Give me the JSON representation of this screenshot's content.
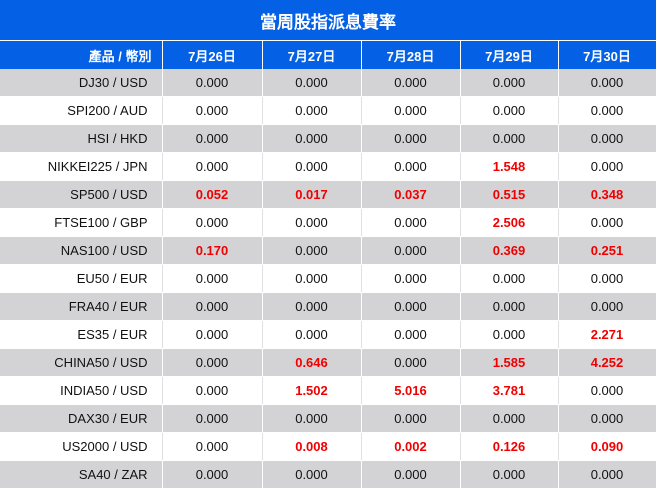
{
  "title": "當周股指派息費率",
  "header": {
    "pair_label": "產品 / 幣別",
    "dates": [
      "7月26日",
      "7月27日",
      "7月28日",
      "7月29日",
      "7月30日"
    ]
  },
  "highlight_color": "#f00000",
  "rows": [
    {
      "pair": "DJ30 / USD",
      "values": [
        "0.000",
        "0.000",
        "0.000",
        "0.000",
        "0.000"
      ],
      "highlight": [
        false,
        false,
        false,
        false,
        false
      ]
    },
    {
      "pair": "SPI200 / AUD",
      "values": [
        "0.000",
        "0.000",
        "0.000",
        "0.000",
        "0.000"
      ],
      "highlight": [
        false,
        false,
        false,
        false,
        false
      ]
    },
    {
      "pair": "HSI / HKD",
      "values": [
        "0.000",
        "0.000",
        "0.000",
        "0.000",
        "0.000"
      ],
      "highlight": [
        false,
        false,
        false,
        false,
        false
      ]
    },
    {
      "pair": "NIKKEI225 / JPN",
      "values": [
        "0.000",
        "0.000",
        "0.000",
        "1.548",
        "0.000"
      ],
      "highlight": [
        false,
        false,
        false,
        true,
        false
      ]
    },
    {
      "pair": "SP500 / USD",
      "values": [
        "0.052",
        "0.017",
        "0.037",
        "0.515",
        "0.348"
      ],
      "highlight": [
        true,
        true,
        true,
        true,
        true
      ]
    },
    {
      "pair": "FTSE100 / GBP",
      "values": [
        "0.000",
        "0.000",
        "0.000",
        "2.506",
        "0.000"
      ],
      "highlight": [
        false,
        false,
        false,
        true,
        false
      ]
    },
    {
      "pair": "NAS100 / USD",
      "values": [
        "0.170",
        "0.000",
        "0.000",
        "0.369",
        "0.251"
      ],
      "highlight": [
        true,
        false,
        false,
        true,
        true
      ]
    },
    {
      "pair": "EU50 / EUR",
      "values": [
        "0.000",
        "0.000",
        "0.000",
        "0.000",
        "0.000"
      ],
      "highlight": [
        false,
        false,
        false,
        false,
        false
      ]
    },
    {
      "pair": "FRA40 / EUR",
      "values": [
        "0.000",
        "0.000",
        "0.000",
        "0.000",
        "0.000"
      ],
      "highlight": [
        false,
        false,
        false,
        false,
        false
      ]
    },
    {
      "pair": "ES35 / EUR",
      "values": [
        "0.000",
        "0.000",
        "0.000",
        "0.000",
        "2.271"
      ],
      "highlight": [
        false,
        false,
        false,
        false,
        true
      ]
    },
    {
      "pair": "CHINA50 / USD",
      "values": [
        "0.000",
        "0.646",
        "0.000",
        "1.585",
        "4.252"
      ],
      "highlight": [
        false,
        true,
        false,
        true,
        true
      ]
    },
    {
      "pair": "INDIA50 / USD",
      "values": [
        "0.000",
        "1.502",
        "5.016",
        "3.781",
        "0.000"
      ],
      "highlight": [
        false,
        true,
        true,
        true,
        false
      ]
    },
    {
      "pair": "DAX30 / EUR",
      "values": [
        "0.000",
        "0.000",
        "0.000",
        "0.000",
        "0.000"
      ],
      "highlight": [
        false,
        false,
        false,
        false,
        false
      ]
    },
    {
      "pair": "US2000 / USD",
      "values": [
        "0.000",
        "0.008",
        "0.002",
        "0.126",
        "0.090"
      ],
      "highlight": [
        false,
        true,
        true,
        true,
        true
      ]
    },
    {
      "pair": "SA40 / ZAR",
      "values": [
        "0.000",
        "0.000",
        "0.000",
        "0.000",
        "0.000"
      ],
      "highlight": [
        false,
        false,
        false,
        false,
        false
      ]
    }
  ]
}
